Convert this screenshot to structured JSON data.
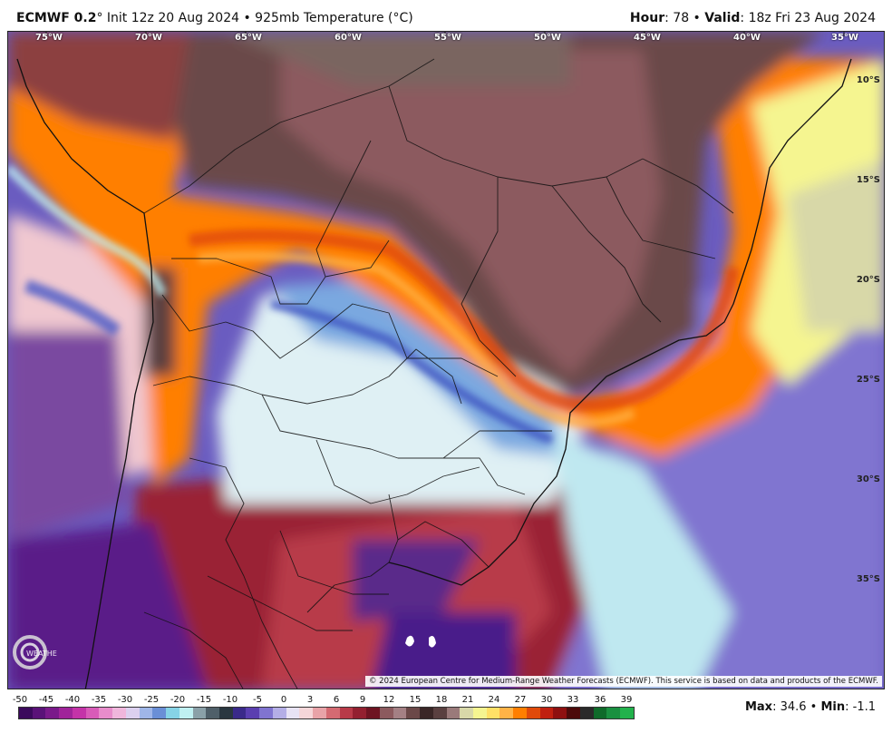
{
  "header": {
    "model": "ECMWF 0.2",
    "init_text": "° Init 12z 20 Aug 2024 • 925mb Temperature (°C)",
    "hour_label": "Hour",
    "hour_value": ": 78 • ",
    "valid_label": "Valid",
    "valid_value": ": 18z Fri 23 Aug 2024"
  },
  "map": {
    "lon_labels": [
      "75°W",
      "70°W",
      "65°W",
      "60°W",
      "55°W",
      "50°W",
      "45°W",
      "40°W",
      "35°W"
    ],
    "lat_labels": [
      "10°S",
      "15°S",
      "20°S",
      "25°S",
      "30°S",
      "35°S"
    ],
    "copyright": "© 2024 European Centre for Medium-Range Weather Forecasts (ECMWF). This service is based on data and products of the ECMWF.",
    "logo_text": "WEATHERBELL"
  },
  "colorbar": {
    "labels": [
      "-50",
      "-45",
      "-40",
      "-35",
      "-30",
      "-25",
      "-20",
      "-15",
      "-10",
      "-5",
      "0",
      "3",
      "6",
      "9",
      "12",
      "15",
      "18",
      "21",
      "24",
      "27",
      "30",
      "33",
      "36",
      "39"
    ],
    "colors": [
      "#3b0a5c",
      "#5a1278",
      "#7a1a8a",
      "#a0249a",
      "#c433a8",
      "#d85bb8",
      "#e88ccb",
      "#f0b6dc",
      "#dcd0ef",
      "#9fb6e8",
      "#6a8fd6",
      "#86d3e6",
      "#bff0f2",
      "#8aa0a8",
      "#4f5f69",
      "#2a3740",
      "#3a2a8a",
      "#5a3fb0",
      "#8074d0",
      "#b4aee6",
      "#e8e3f4",
      "#f5d6d9",
      "#e8a3a8",
      "#d46a72",
      "#b83a48",
      "#932030",
      "#6e1422",
      "#8c5a5e",
      "#a48084",
      "#6b4848",
      "#3a2727",
      "#5a4040",
      "#9a7a7a",
      "#d8d8a8",
      "#f5f590",
      "#ffe066",
      "#ffb347",
      "#ff7f00",
      "#e04a0a",
      "#c02010",
      "#8e1010",
      "#4c0a0a",
      "#2a2a2a",
      "#0f6a2a",
      "#1a9040",
      "#22b24c"
    ]
  },
  "maxmin": {
    "max_label": "Max",
    "max_value": ": 34.6 • ",
    "min_label": "Min",
    "min_value": ": -1.1"
  }
}
